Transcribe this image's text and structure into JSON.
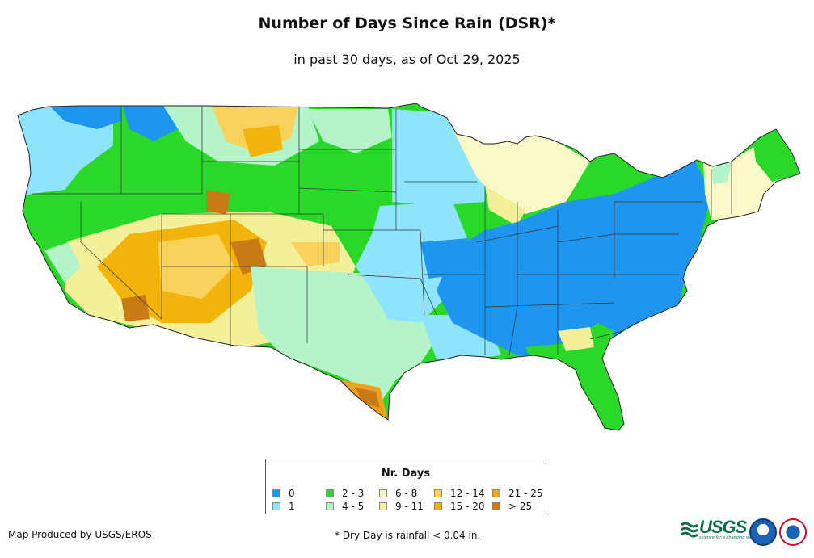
{
  "title": "Number of Days Since Rain (DSR)*",
  "subtitle": "in past 30 days, as of Oct 29, 2025",
  "legend": {
    "title": "Nr. Days",
    "items": [
      {
        "label": "0",
        "color": "#1e96f0"
      },
      {
        "label": "1",
        "color": "#8ee4fa"
      },
      {
        "label": "2 - 3",
        "color": "#2ad82a"
      },
      {
        "label": "4 - 5",
        "color": "#b4f4c8"
      },
      {
        "label": "6 - 8",
        "color": "#fafac8"
      },
      {
        "label": "9 - 11",
        "color": "#f4f09a"
      },
      {
        "label": "12 - 14",
        "color": "#f8d25a"
      },
      {
        "label": "15 - 20",
        "color": "#f2b40a"
      },
      {
        "label": "21 - 25",
        "color": "#eea01e"
      },
      {
        "label": "> 25",
        "color": "#c87a14"
      }
    ]
  },
  "credit": "Map Produced by USGS/EROS",
  "footnote": "* Dry Day is rainfall < 0.04 in.",
  "logos": {
    "usgs": "USGS",
    "usgs_tagline": "science for a changing world"
  }
}
